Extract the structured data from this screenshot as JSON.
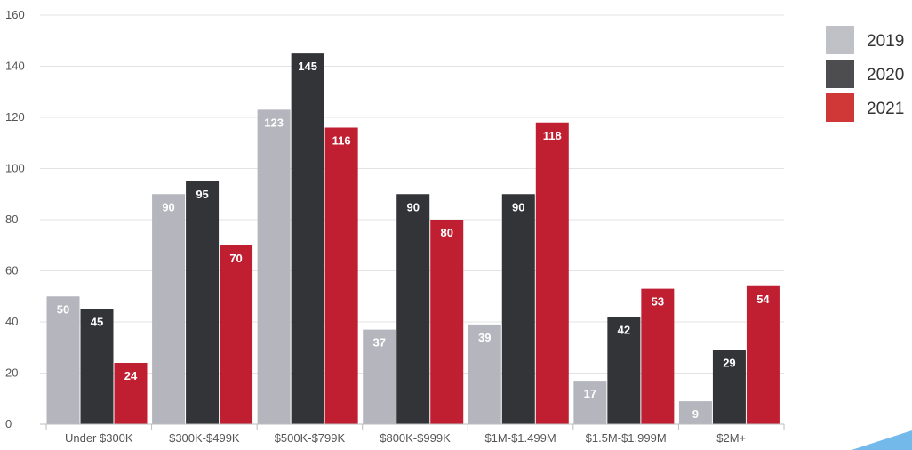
{
  "chart_data": {
    "type": "bar",
    "title": "",
    "xlabel": "",
    "ylabel": "",
    "ylim": [
      0,
      160
    ],
    "yticks": [
      0,
      20,
      40,
      60,
      80,
      100,
      120,
      140,
      160
    ],
    "grid": true,
    "legend_position": "right",
    "categories": [
      "Under $300K",
      "$300K-$499K",
      "$500K-$799K",
      "$800K-$999K",
      "$1M-$1.499M",
      "$1.5M-$1.999M",
      "$2M+"
    ],
    "series": [
      {
        "name": "2019",
        "color": "#b4b5bd",
        "values": [
          50,
          90,
          123,
          37,
          39,
          17,
          9
        ]
      },
      {
        "name": "2020",
        "color": "#333438",
        "values": [
          45,
          95,
          145,
          90,
          90,
          42,
          29
        ]
      },
      {
        "name": "2021",
        "color": "#c01f32",
        "values": [
          24,
          70,
          116,
          80,
          118,
          53,
          54
        ]
      }
    ],
    "legend_swatch_colors": [
      "#c0c1c6",
      "#4d4d4f",
      "#d03838"
    ]
  }
}
